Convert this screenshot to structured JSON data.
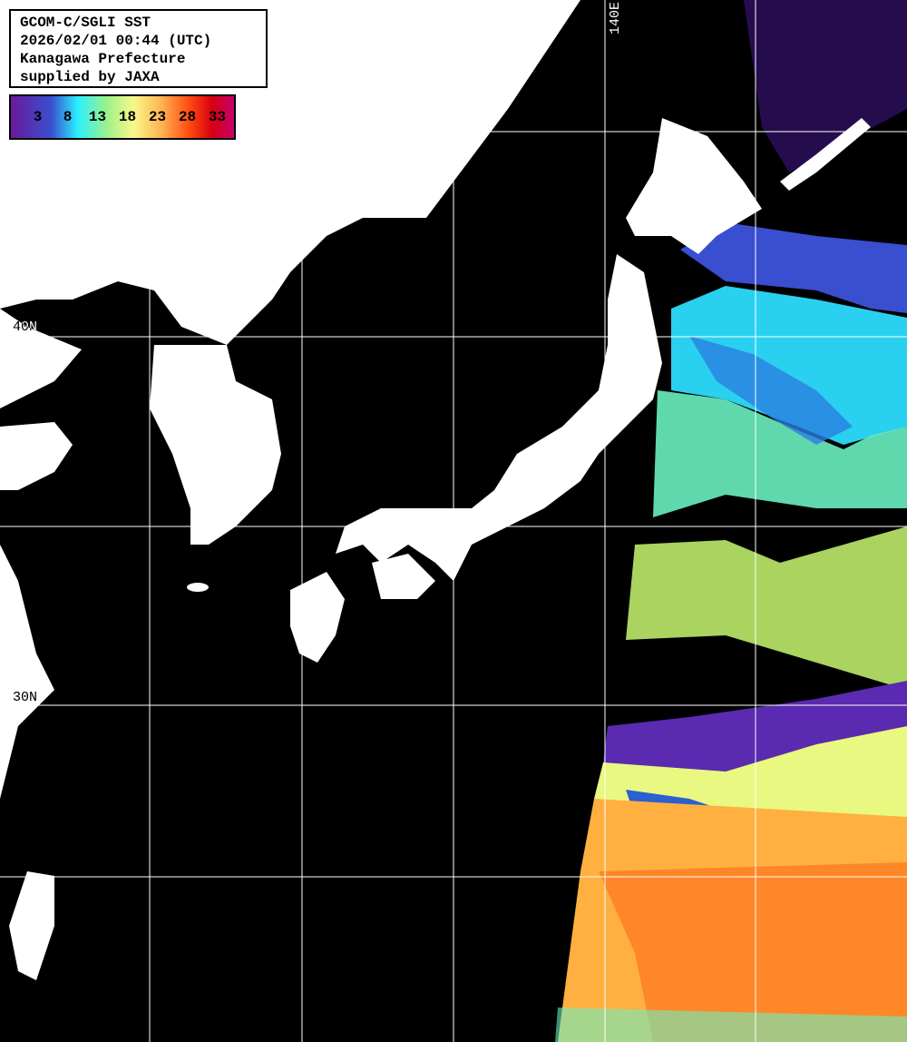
{
  "info": {
    "lines": [
      "GCOM-C/SGLI SST",
      "2026/02/01 00:44 (UTC)",
      "Kanagawa Prefecture",
      "supplied by JAXA"
    ]
  },
  "legend": {
    "ticks": [
      "3",
      "8",
      "13",
      "18",
      "23",
      "28",
      "33"
    ],
    "colors": [
      "#6a1a9a",
      "#3a4ed0",
      "#2af0ff",
      "#9cf28a",
      "#f8f88a",
      "#ffb050",
      "#ff4a10",
      "#d80010",
      "#c8006a"
    ]
  },
  "grid": {
    "lat_labels": [
      "40N",
      "30N"
    ],
    "lon_labels": [
      "140E"
    ]
  },
  "colors": {
    "land": "#ffffff",
    "no_data": "#000000",
    "grid": "#ffffff"
  }
}
